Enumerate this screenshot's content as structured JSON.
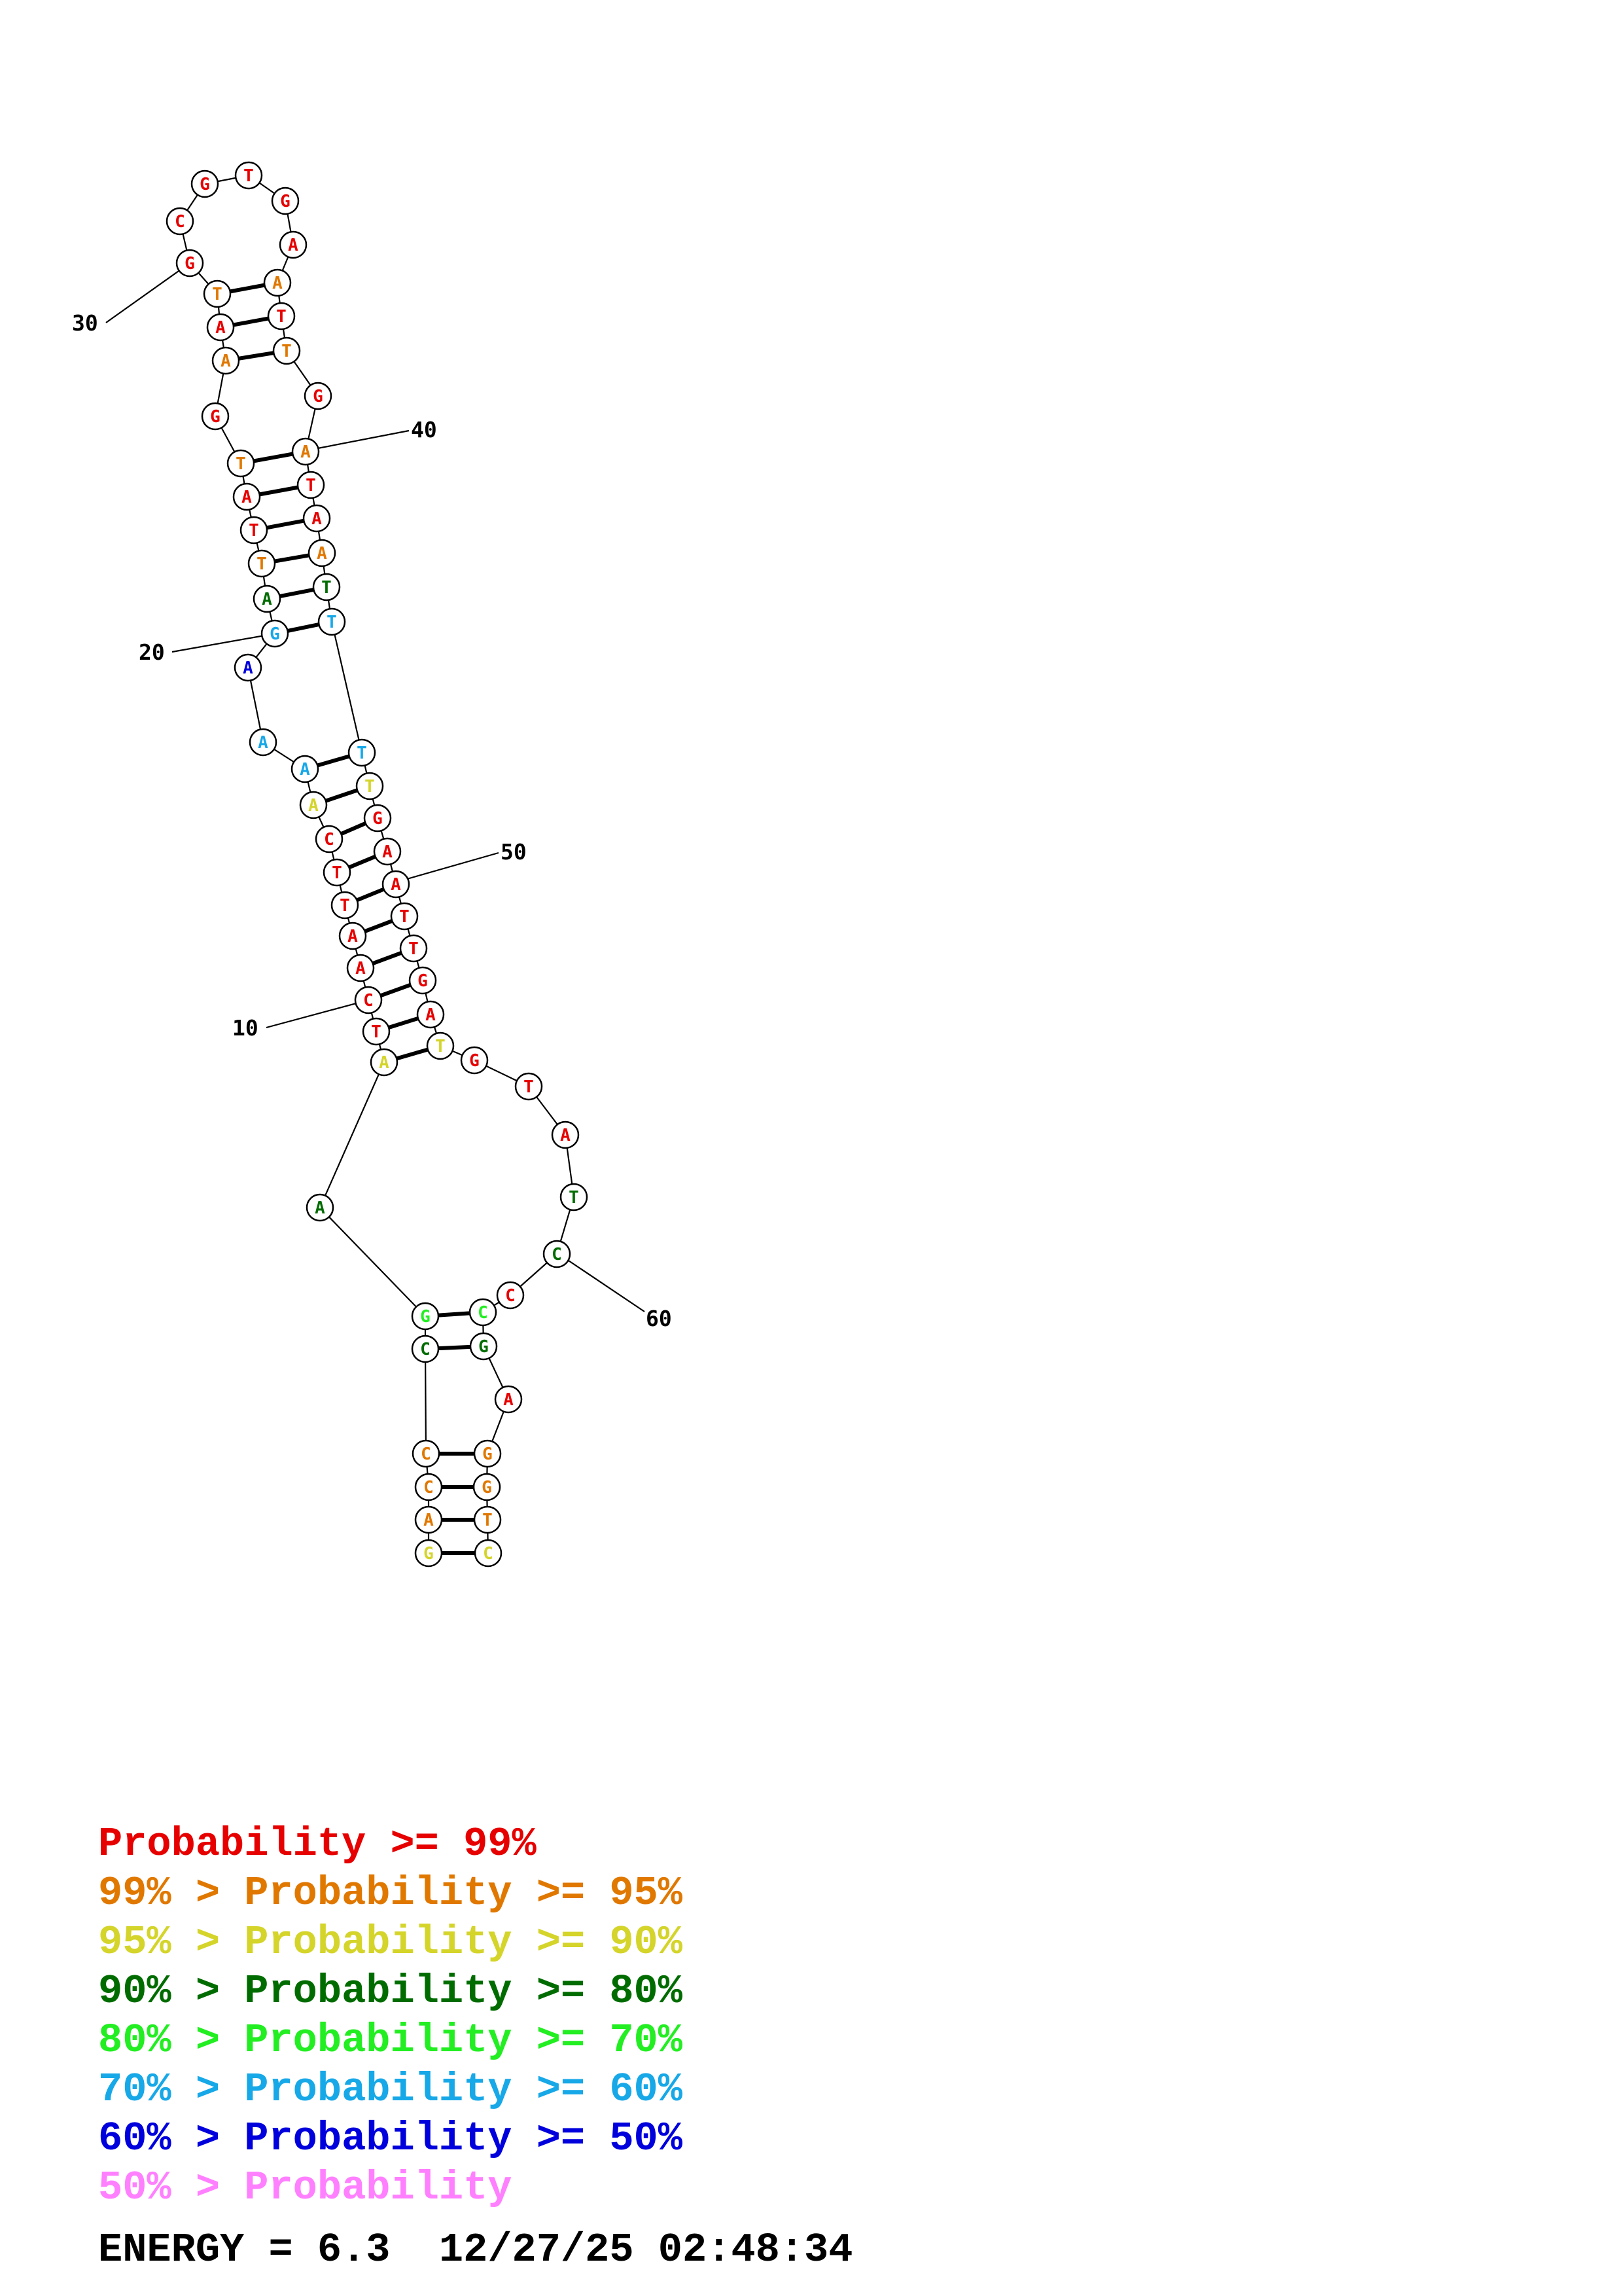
{
  "structure": {
    "bases": [
      {
        "n": "G",
        "c": "#d4d42a"
      },
      {
        "n": "A",
        "c": "#e07800"
      },
      {
        "n": "C",
        "c": "#e07800"
      },
      {
        "n": "C",
        "c": "#e07800"
      },
      {
        "n": "C",
        "c": "#006c00"
      },
      {
        "n": "G",
        "c": "#22ee22"
      },
      {
        "n": "A",
        "c": "#006c00"
      },
      {
        "n": "A",
        "c": "#d4d42a"
      },
      {
        "n": "T",
        "c": "#e60000"
      },
      {
        "n": "C",
        "c": "#e60000"
      },
      {
        "n": "A",
        "c": "#e60000"
      },
      {
        "n": "A",
        "c": "#e60000"
      },
      {
        "n": "T",
        "c": "#e60000"
      },
      {
        "n": "T",
        "c": "#e60000"
      },
      {
        "n": "C",
        "c": "#e60000"
      },
      {
        "n": "A",
        "c": "#d4d42a"
      },
      {
        "n": "A",
        "c": "#17a8e8"
      },
      {
        "n": "A",
        "c": "#17a8e8"
      },
      {
        "n": "A",
        "c": "#0000dd"
      },
      {
        "n": "G",
        "c": "#17a8e8"
      },
      {
        "n": "A",
        "c": "#006c00"
      },
      {
        "n": "T",
        "c": "#e07800"
      },
      {
        "n": "T",
        "c": "#e60000"
      },
      {
        "n": "A",
        "c": "#e60000"
      },
      {
        "n": "T",
        "c": "#e07800"
      },
      {
        "n": "G",
        "c": "#e60000"
      },
      {
        "n": "A",
        "c": "#e07800"
      },
      {
        "n": "A",
        "c": "#e60000"
      },
      {
        "n": "T",
        "c": "#e07800"
      },
      {
        "n": "G",
        "c": "#e60000"
      },
      {
        "n": "C",
        "c": "#e60000"
      },
      {
        "n": "G",
        "c": "#e60000"
      },
      {
        "n": "T",
        "c": "#e60000"
      },
      {
        "n": "G",
        "c": "#e60000"
      },
      {
        "n": "A",
        "c": "#e60000"
      },
      {
        "n": "A",
        "c": "#e07800"
      },
      {
        "n": "T",
        "c": "#e60000"
      },
      {
        "n": "T",
        "c": "#e07800"
      },
      {
        "n": "G",
        "c": "#e60000"
      },
      {
        "n": "A",
        "c": "#e07800"
      },
      {
        "n": "T",
        "c": "#e60000"
      },
      {
        "n": "A",
        "c": "#e60000"
      },
      {
        "n": "A",
        "c": "#e07800"
      },
      {
        "n": "T",
        "c": "#006c00"
      },
      {
        "n": "T",
        "c": "#17a8e8"
      },
      {
        "n": "T",
        "c": "#17a8e8"
      },
      {
        "n": "T",
        "c": "#d4d42a"
      },
      {
        "n": "G",
        "c": "#e60000"
      },
      {
        "n": "A",
        "c": "#e60000"
      },
      {
        "n": "A",
        "c": "#e60000"
      },
      {
        "n": "T",
        "c": "#e60000"
      },
      {
        "n": "T",
        "c": "#e60000"
      },
      {
        "n": "G",
        "c": "#e60000"
      },
      {
        "n": "A",
        "c": "#e60000"
      },
      {
        "n": "T",
        "c": "#d4d42a"
      },
      {
        "n": "G",
        "c": "#e60000"
      },
      {
        "n": "T",
        "c": "#e60000"
      },
      {
        "n": "A",
        "c": "#e60000"
      },
      {
        "n": "T",
        "c": "#006c00"
      },
      {
        "n": "C",
        "c": "#006c00"
      },
      {
        "n": "C",
        "c": "#e60000"
      },
      {
        "n": "C",
        "c": "#22ee22"
      },
      {
        "n": "G",
        "c": "#006c00"
      },
      {
        "n": "A",
        "c": "#e60000"
      },
      {
        "n": "G",
        "c": "#e07800"
      },
      {
        "n": "G",
        "c": "#e07800"
      },
      {
        "n": "T",
        "c": "#e07800"
      },
      {
        "n": "C",
        "c": "#d4d42a"
      }
    ],
    "pairs": [
      [
        1,
        68
      ],
      [
        2,
        67
      ],
      [
        3,
        66
      ],
      [
        4,
        65
      ],
      [
        5,
        63
      ],
      [
        6,
        62
      ],
      [
        8,
        55
      ],
      [
        9,
        54
      ],
      [
        10,
        53
      ],
      [
        11,
        52
      ],
      [
        12,
        51
      ],
      [
        13,
        50
      ],
      [
        14,
        49
      ],
      [
        15,
        48
      ],
      [
        16,
        47
      ],
      [
        17,
        46
      ],
      [
        20,
        45
      ],
      [
        21,
        44
      ],
      [
        22,
        43
      ],
      [
        23,
        42
      ],
      [
        24,
        41
      ],
      [
        25,
        40
      ],
      [
        27,
        38
      ],
      [
        28,
        37
      ],
      [
        29,
        36
      ]
    ],
    "tick_labels": {
      "n10": "10",
      "n20": "20",
      "n30": "30",
      "n40": "40",
      "n50": "50",
      "n60": "60"
    }
  },
  "legend": [
    {
      "prefix": "",
      "text": "Probability >= 99%",
      "color": "#e60000"
    },
    {
      "prefix": "99% > ",
      "text": "Probability >= 95%",
      "color": "#e07800"
    },
    {
      "prefix": "95% > ",
      "text": "Probability >= 90%",
      "color": "#d4d42a"
    },
    {
      "prefix": "90% > ",
      "text": "Probability >= 80%",
      "color": "#006c00"
    },
    {
      "prefix": "80% > ",
      "text": "Probability >= 70%",
      "color": "#22ee22"
    },
    {
      "prefix": "70% > ",
      "text": "Probability >= 60%",
      "color": "#17a8e8"
    },
    {
      "prefix": "60% > ",
      "text": "Probability >= 50%",
      "color": "#0000dd"
    },
    {
      "prefix": "50% > ",
      "text": "Probability",
      "color": "#ff80ff"
    }
  ],
  "footer": {
    "energy": "ENERGY = 6.3",
    "timestamp": "12/27/25 02:48:34"
  }
}
